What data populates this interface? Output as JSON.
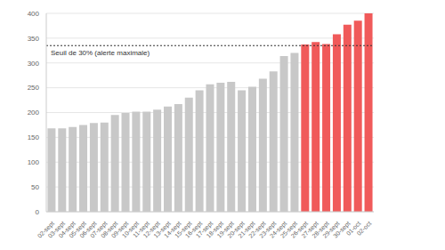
{
  "chart_data": {
    "type": "bar",
    "categories": [
      "02-sept",
      "03-sept",
      "04-sept",
      "05-sept",
      "06-sept",
      "07-sept",
      "08-sept",
      "09-sept",
      "10-sept",
      "11-sept",
      "12-sept",
      "13-sept",
      "14-sept",
      "15-sept",
      "16-sept",
      "17-sept",
      "18-sept",
      "19-sept",
      "20-sept",
      "21-sept",
      "22-sept",
      "23-sept",
      "24-sept",
      "25-sept",
      "26-sept",
      "27-sept",
      "28-sept",
      "29-sept",
      "30-sept",
      "01-oct",
      "02-oct"
    ],
    "values": [
      168,
      168,
      171,
      175,
      179,
      180,
      195,
      199,
      202,
      202,
      206,
      212,
      217,
      230,
      245,
      257,
      260,
      262,
      245,
      252,
      268,
      283,
      314,
      320,
      337,
      342,
      338,
      358,
      377,
      385,
      400
    ],
    "colors": [
      "#c8c8c8",
      "#c8c8c8",
      "#c8c8c8",
      "#c8c8c8",
      "#c8c8c8",
      "#c8c8c8",
      "#c8c8c8",
      "#c8c8c8",
      "#c8c8c8",
      "#c8c8c8",
      "#c8c8c8",
      "#c8c8c8",
      "#c8c8c8",
      "#c8c8c8",
      "#c8c8c8",
      "#c8c8c8",
      "#c8c8c8",
      "#c8c8c8",
      "#c8c8c8",
      "#c8c8c8",
      "#c8c8c8",
      "#c8c8c8",
      "#c8c8c8",
      "#c8c8c8",
      "#f05a5a",
      "#f05a5a",
      "#f05a5a",
      "#f05a5a",
      "#f05a5a",
      "#f05a5a",
      "#f05a5a"
    ],
    "ylim": [
      0,
      400
    ],
    "yticks": [
      0,
      50,
      100,
      150,
      200,
      250,
      300,
      350,
      400
    ],
    "grid": true,
    "annotations": [
      {
        "y": 335,
        "text": "Seuil de 30% (alerte maximale)"
      }
    ]
  }
}
